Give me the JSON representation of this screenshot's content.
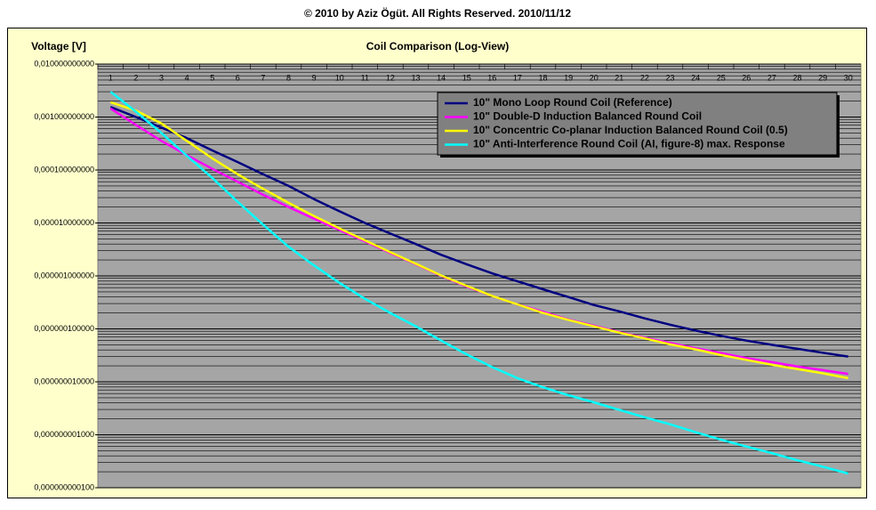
{
  "chart_data": {
    "type": "line",
    "copyright": "© 2010 by Aziz Ögüt. All Rights Reserved. 2010/11/12",
    "title": "Coil Comparison (Log-View)",
    "y_label": "Voltage [V]",
    "log_scale_y": true,
    "grid": true,
    "minor_grid": true,
    "legend_position": "upper-right",
    "categories": [
      "1",
      "2",
      "3",
      "4",
      "5",
      "6",
      "7",
      "8",
      "9",
      "10",
      "11",
      "12",
      "13",
      "14",
      "15",
      "16",
      "17",
      "18",
      "19",
      "20",
      "21",
      "22",
      "23",
      "24",
      "25",
      "26",
      "27",
      "28",
      "29",
      "30"
    ],
    "ylim": [
      1e-10,
      0.01
    ],
    "yticks": [
      {
        "value": 0.01,
        "label": "0,010000000000"
      },
      {
        "value": 0.001,
        "label": "0,001000000000"
      },
      {
        "value": 0.0001,
        "label": "0,000100000000"
      },
      {
        "value": 1e-05,
        "label": "0,000010000000"
      },
      {
        "value": 1e-06,
        "label": "0,000001000000"
      },
      {
        "value": 1e-07,
        "label": "0,000000100000"
      },
      {
        "value": 1e-08,
        "label": "0,000000010000"
      },
      {
        "value": 1e-09,
        "label": "0,000000001000"
      },
      {
        "value": 1e-10,
        "label": "0,000000000100"
      }
    ],
    "series": [
      {
        "name": "10\" Mono Loop Round Coil (Reference)",
        "color": "#000080",
        "values": [
          0.00155,
          0.001,
          0.00063,
          0.0004,
          0.000234,
          0.000141,
          8.3e-05,
          5e-05,
          2.82e-05,
          1.66e-05,
          1e-05,
          6.3e-06,
          4e-06,
          2.5e-06,
          1.66e-06,
          1.12e-06,
          7.9e-07,
          5.6e-07,
          4e-07,
          2.82e-07,
          2.14e-07,
          1.58e-07,
          1.2e-07,
          9.3e-08,
          7.4e-08,
          6e-08,
          5e-08,
          4.2e-08,
          3.55e-08,
          3e-08
        ]
      },
      {
        "name": "10\" Double-D Induction Balanced Round Coil",
        "color": "#ff00ff",
        "values": [
          0.00145,
          0.00071,
          0.000355,
          0.00019,
          0.000105,
          6e-05,
          3.4e-05,
          2e-05,
          1.2e-05,
          7.4e-06,
          4.5e-06,
          2.7e-06,
          1.66e-06,
          1e-06,
          6.3e-07,
          4.2e-07,
          2.9e-07,
          2.1e-07,
          1.5e-07,
          1.15e-07,
          8.7e-08,
          6.8e-08,
          5.4e-08,
          4.3e-08,
          3.5e-08,
          2.8e-08,
          2.35e-08,
          1.95e-08,
          1.66e-08,
          1.41e-08
        ]
      },
      {
        "name": "10\" Concentric Co-planar Induction Balanced Round Coil (0.5)",
        "color": "#ffff00",
        "values": [
          0.0019,
          0.00132,
          0.00076,
          0.000355,
          0.000166,
          8.3e-05,
          4.4e-05,
          2.4e-05,
          1.35e-05,
          7.9e-06,
          4.7e-06,
          2.8e-06,
          1.7e-06,
          1.02e-06,
          6.5e-07,
          4.2e-07,
          2.9e-07,
          2e-07,
          1.48e-07,
          1.12e-07,
          8.5e-08,
          6.6e-08,
          5.1e-08,
          4.1e-08,
          3.2e-08,
          2.6e-08,
          2.1e-08,
          1.74e-08,
          1.45e-08,
          1.17e-08
        ]
      },
      {
        "name": "10\" Anti-Interference Round Coil (AI, figure-8) max. Response",
        "color": "#00ffff",
        "values": [
          0.003,
          0.00126,
          0.0005,
          0.000186,
          7.1e-05,
          2.5e-05,
          9.3e-06,
          3.55e-06,
          1.58e-06,
          7.4e-07,
          3.7e-07,
          2e-07,
          1.12e-07,
          6e-08,
          3.3e-08,
          1.9e-08,
          1.17e-08,
          7.9e-09,
          5.6e-09,
          4.1e-09,
          2.95e-09,
          2.14e-09,
          1.58e-09,
          1.12e-09,
          8.1e-10,
          6e-10,
          4.5e-10,
          3.3e-10,
          2.5e-10,
          1.86e-10
        ]
      }
    ]
  }
}
